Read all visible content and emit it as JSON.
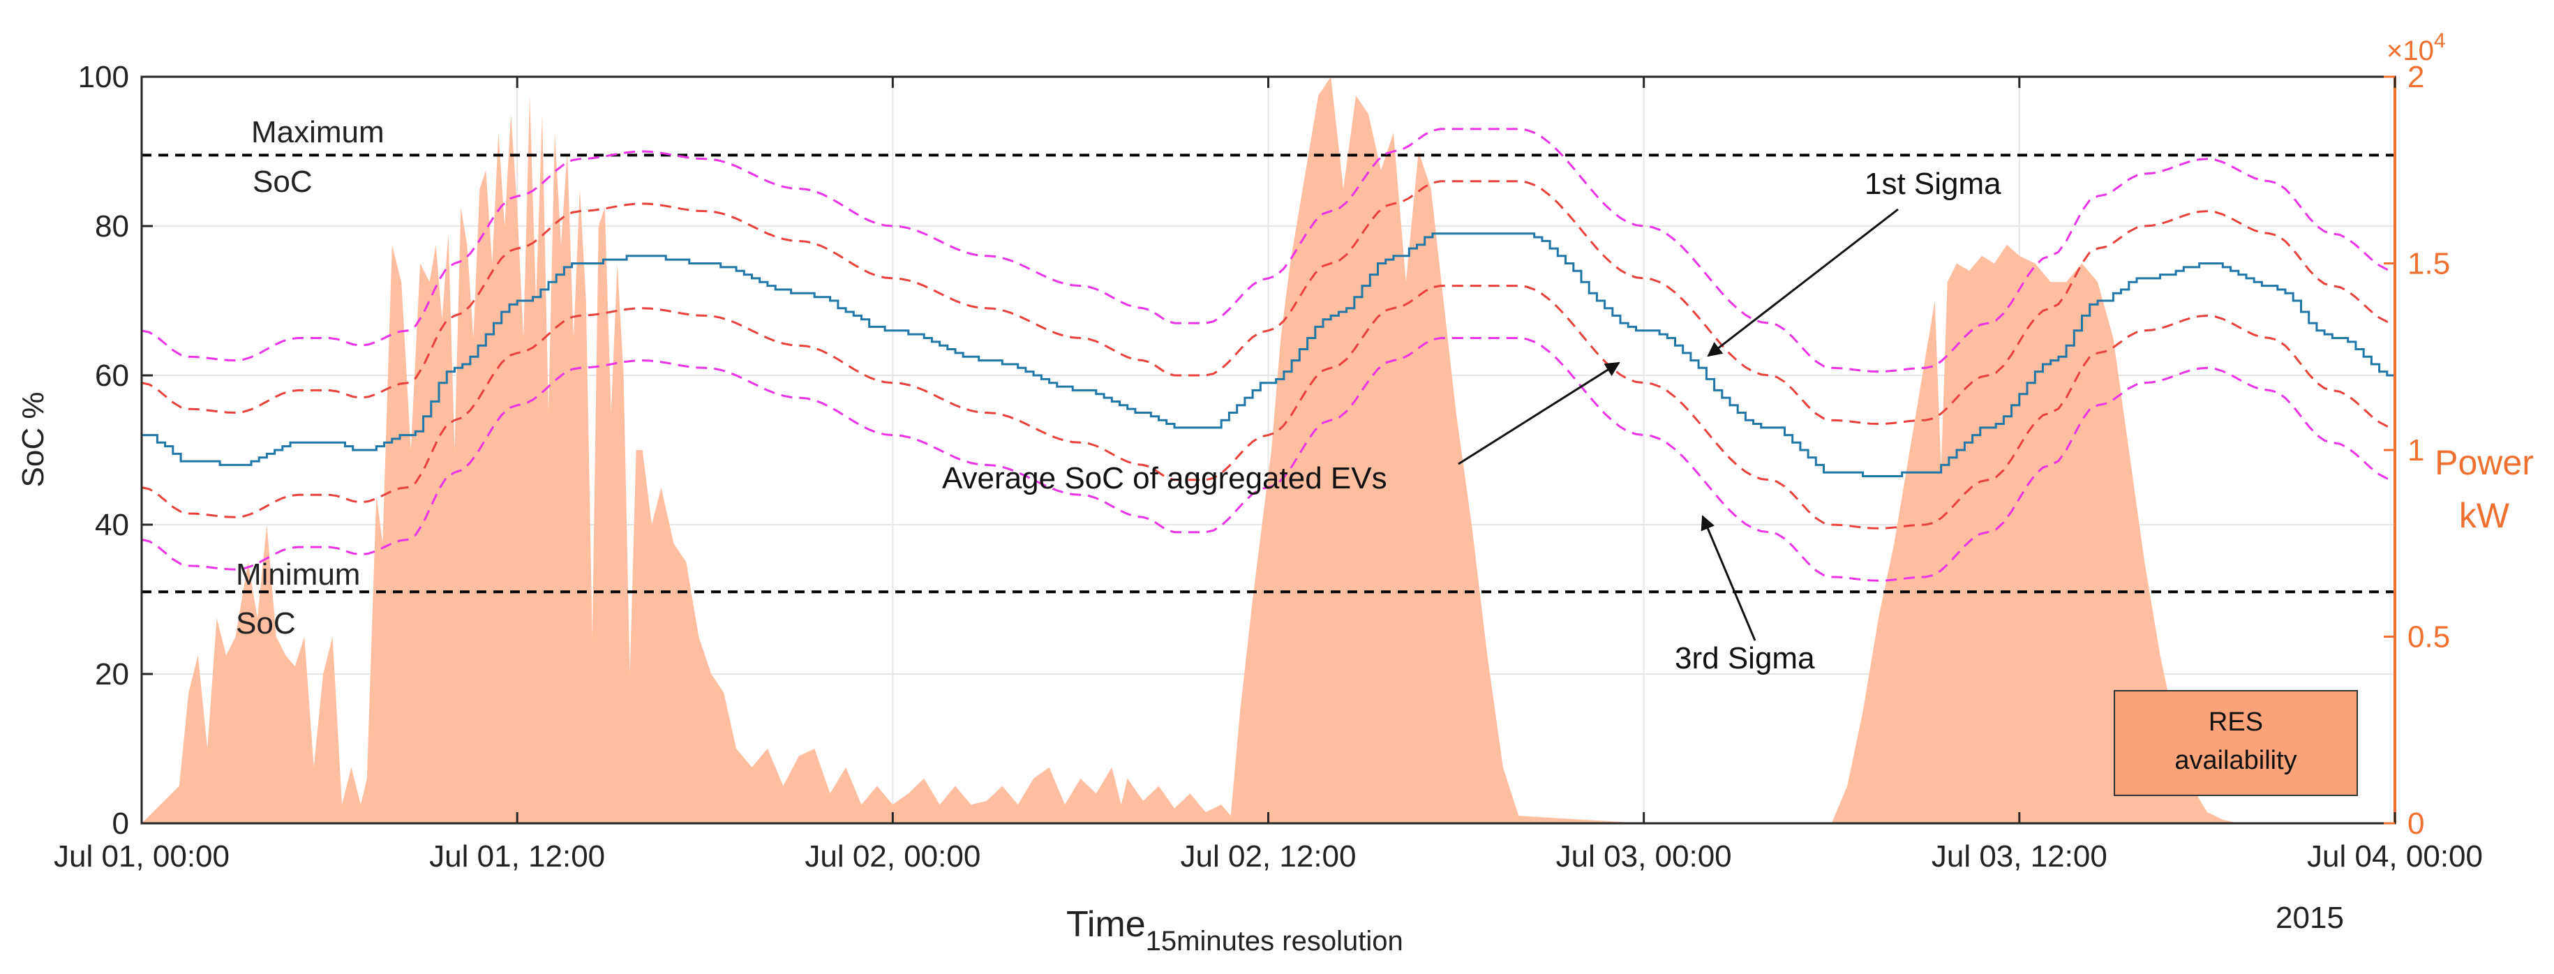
{
  "chart_data": {
    "type": "line",
    "x_unit": "hours since Jul 01, 00:00 (15 minutes resolution)",
    "xlim": [
      0,
      72
    ],
    "x_ticks": [
      {
        "x": 0,
        "label": "Jul 01, 00:00"
      },
      {
        "x": 12,
        "label": "Jul 01, 12:00"
      },
      {
        "x": 24,
        "label": "Jul 02, 00:00"
      },
      {
        "x": 36,
        "label": "Jul 02, 12:00"
      },
      {
        "x": 48,
        "label": "Jul 03, 00:00"
      },
      {
        "x": 60,
        "label": "Jul 03, 12:00"
      },
      {
        "x": 72,
        "label": "Jul 04, 00:00"
      }
    ],
    "x_year_label": "2015",
    "xlabel": "Time",
    "xlabel_sub": "15minutes resolution",
    "y_left": {
      "label": "SoC %",
      "lim": [
        0,
        100
      ],
      "ticks": [
        {
          "v": 0,
          "label": "0"
        },
        {
          "v": 20,
          "label": "20"
        },
        {
          "v": 40,
          "label": "40"
        },
        {
          "v": 60,
          "label": "60"
        },
        {
          "v": 80,
          "label": "80"
        },
        {
          "v": 100,
          "label": "100"
        }
      ]
    },
    "y_right": {
      "label_line1": "Power",
      "label_line2": "kW",
      "lim": [
        0,
        2
      ],
      "exponent_label": "×10",
      "exponent_power": "4",
      "ticks": [
        {
          "v": 0,
          "label": "0"
        },
        {
          "v": 0.5,
          "label": "0.5"
        },
        {
          "v": 1,
          "label": "1"
        },
        {
          "v": 1.5,
          "label": "1.5"
        },
        {
          "v": 2,
          "label": "2"
        }
      ]
    },
    "colors": {
      "average": "#1f77a8",
      "sigma1": "#e8413b",
      "sigma3": "#ea33e6",
      "res_fill": "#ffbea0",
      "limits": "#000000",
      "right_axis": "#f07030",
      "grid": "#e6e6e6",
      "legend_fill": "#fca37a"
    },
    "average_soc": {
      "name": "Average SoC of aggregated EVs",
      "x": [
        0,
        1.5,
        3,
        5,
        6,
        7,
        8.5,
        10,
        12,
        14,
        16,
        18,
        21,
        24,
        27,
        30,
        32,
        33,
        34,
        36,
        38,
        40,
        41.5,
        44,
        48,
        52,
        54,
        55.5,
        57,
        59,
        61,
        62.5,
        64,
        66,
        68,
        70,
        72
      ],
      "y": [
        52,
        48.5,
        48,
        51,
        51,
        50,
        52,
        61,
        70,
        75,
        76,
        75,
        71,
        66,
        62,
        58,
        55,
        53,
        53,
        59,
        68,
        76,
        79,
        79,
        66,
        53,
        47,
        46.5,
        47,
        53,
        62,
        70,
        73,
        75,
        72,
        65,
        60
      ]
    },
    "sigma1_offset": 7,
    "sigma3_offset": 14,
    "limits": {
      "max_soc": 89.5,
      "min_soc": 31,
      "max_label_line1": "Maximum",
      "max_label_line2": "SoC",
      "min_label_line1": "Minimum",
      "min_label_line2": "SoC"
    },
    "res_availability": {
      "name": "RES availability",
      "legend_line1": "RES",
      "legend_line2": "availability",
      "unit": "kW ×10^4",
      "x": [
        0,
        1.2,
        1.5,
        1.8,
        2.1,
        2.4,
        2.7,
        3,
        3.4,
        3.7,
        4,
        4.3,
        4.6,
        4.9,
        5.2,
        5.5,
        5.8,
        6.1,
        6.4,
        6.7,
        7,
        7.2,
        7.3,
        7.5,
        7.7,
        8,
        8.3,
        8.6,
        8.9,
        9.2,
        9.4,
        9.6,
        9.8,
        10,
        10.2,
        10.4,
        10.6,
        10.8,
        11,
        11.2,
        11.4,
        11.6,
        11.8,
        12,
        12.2,
        12.4,
        12.6,
        12.8,
        13,
        13.2,
        13.4,
        13.6,
        13.8,
        14,
        14.2,
        14.4,
        14.6,
        14.8,
        15,
        15.2,
        15.4,
        15.6,
        15.8,
        16,
        16.3,
        16.6,
        17,
        17.4,
        17.8,
        18.2,
        18.6,
        19,
        19.5,
        20,
        20.5,
        21,
        21.5,
        22,
        22.5,
        23,
        23.5,
        24,
        24.5,
        25,
        25.5,
        26,
        26.5,
        27,
        27.5,
        28,
        28.5,
        29,
        29.5,
        30,
        30.5,
        31,
        31.3,
        31.5,
        32,
        32.5,
        33,
        33.5,
        34,
        34.5,
        34.8,
        35.1,
        35.3,
        35.5,
        35.8,
        36.1,
        36.4,
        36.7,
        37,
        37.3,
        37.6,
        38,
        38.4,
        38.8,
        39.2,
        39.6,
        40,
        40.4,
        40.8,
        41.2,
        41.6,
        42,
        42.5,
        43,
        43.5,
        44,
        48,
        54,
        54.5,
        55,
        55.5,
        56,
        56.5,
        57,
        57.3,
        57.5,
        57.7,
        58,
        58.4,
        58.8,
        59.2,
        59.6,
        60,
        60.5,
        61,
        61.5,
        62,
        62.5,
        63,
        63.5,
        64,
        64.5,
        65,
        65.5,
        66,
        66.5,
        67,
        72
      ],
      "y": [
        0,
        0.1,
        0.35,
        0.45,
        0.2,
        0.55,
        0.45,
        0.5,
        0.7,
        0.55,
        0.8,
        0.5,
        0.45,
        0.42,
        0.5,
        0.15,
        0.4,
        0.5,
        0.05,
        0.15,
        0.05,
        0.12,
        0.38,
        0.88,
        0.75,
        1.55,
        1.45,
        1.0,
        1.5,
        1.45,
        1.55,
        1.35,
        1.58,
        1.0,
        1.65,
        1.55,
        1.3,
        1.7,
        1.75,
        1.5,
        1.85,
        1.6,
        1.9,
        1.65,
        1.3,
        1.95,
        1.4,
        1.9,
        1.1,
        1.85,
        1.55,
        1.8,
        1.3,
        1.7,
        1.4,
        0.5,
        1.6,
        1.65,
        1.1,
        1.5,
        1.2,
        0.4,
        1.0,
        1.0,
        0.8,
        0.9,
        0.75,
        0.7,
        0.5,
        0.4,
        0.35,
        0.2,
        0.15,
        0.2,
        0.1,
        0.18,
        0.2,
        0.08,
        0.15,
        0.05,
        0.1,
        0.05,
        0.08,
        0.12,
        0.05,
        0.1,
        0.05,
        0.06,
        0.1,
        0.05,
        0.12,
        0.15,
        0.05,
        0.12,
        0.08,
        0.15,
        0.05,
        0.12,
        0.06,
        0.1,
        0.04,
        0.08,
        0.03,
        0.05,
        0.02,
        0.3,
        0.45,
        0.6,
        0.8,
        1.0,
        1.3,
        1.5,
        1.65,
        1.8,
        1.95,
        2.0,
        1.7,
        1.95,
        1.9,
        1.75,
        1.85,
        1.45,
        1.8,
        1.7,
        1.4,
        1.1,
        0.8,
        0.45,
        0.15,
        0.02,
        0,
        0,
        0.1,
        0.3,
        0.55,
        0.75,
        1.0,
        1.25,
        1.4,
        0.95,
        1.45,
        1.5,
        1.48,
        1.52,
        1.5,
        1.55,
        1.52,
        1.5,
        1.45,
        1.45,
        1.5,
        1.45,
        1.3,
        1.0,
        0.7,
        0.45,
        0.25,
        0.1,
        0.03,
        0.01,
        0,
        0
      ]
    },
    "annotations": [
      {
        "text": "1st Sigma"
      },
      {
        "text": "Average SoC of aggregated EVs"
      },
      {
        "text": "3rd Sigma"
      }
    ]
  }
}
